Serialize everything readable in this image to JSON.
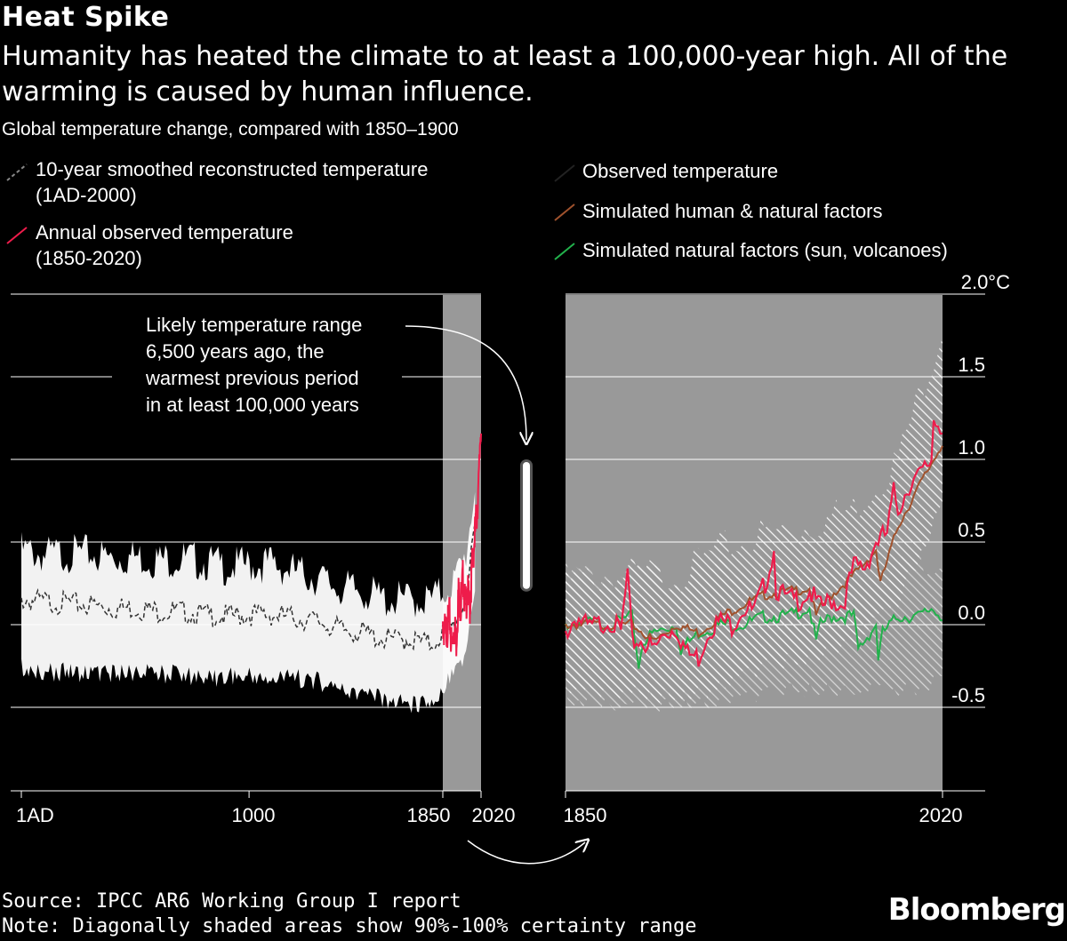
{
  "header": {
    "title": "Heat Spike",
    "subtitle": "Humanity has heated the climate to at least a 100,000-year high. All of the warming is caused by human influence.",
    "axis_title": "Global temperature change, compared with 1850–1900"
  },
  "legend": {
    "reconstructed": "10-year smoothed reconstructed temperature",
    "reconstructed_range": "(1AD-2000)",
    "observed_annual": "Annual observed temperature",
    "observed_annual_range": "(1850-2020)",
    "observed": "Observed temperature",
    "sim_human_natural": "Simulated human & natural factors",
    "sim_natural": "Simulated natural factors (sun, volcanoes)"
  },
  "annotation": {
    "lines": [
      "Likely temperature range",
      "6,500 years ago, the",
      "warmest previous period",
      "in at least 100,000 years"
    ]
  },
  "footer": {
    "source": "Source: IPCC AR6 Working Group I report",
    "note": "Note: Diagonally shaded areas show 90%-100% certainty range",
    "brand": "Bloomberg"
  },
  "colors": {
    "background": "#000000",
    "panel_shade": "#999999",
    "observed_red": "#ee1c4b",
    "human_natural_brown": "#a0522d",
    "natural_green": "#22b24c",
    "band_white": "#ffffff"
  },
  "chart_data": [
    {
      "type": "line",
      "panel": "left",
      "xlabel": "",
      "ylabel": "",
      "x_ticks": [
        "1AD",
        "1000",
        "1850",
        "2020"
      ],
      "xlim": [
        1,
        2020
      ],
      "ylim": [
        -1.0,
        2.0
      ],
      "grid": true,
      "shaded_region": [
        1850,
        2020
      ],
      "series": [
        {
          "name": "10-year smoothed reconstructed temperature (1AD-2000)",
          "style": "dashed",
          "x": [
            1,
            100,
            200,
            300,
            400,
            500,
            600,
            700,
            800,
            900,
            1000,
            1100,
            1200,
            1300,
            1400,
            1500,
            1600,
            1700,
            1800,
            1850,
            1900,
            1950,
            2000
          ],
          "y": [
            0.15,
            0.14,
            0.13,
            0.12,
            0.1,
            0.1,
            0.08,
            0.08,
            0.06,
            0.05,
            0.06,
            0.06,
            0.04,
            0.02,
            -0.03,
            -0.05,
            -0.09,
            -0.09,
            -0.12,
            -0.05,
            0.0,
            0.15,
            0.62
          ],
          "upper": [
            0.45,
            0.42,
            0.43,
            0.43,
            0.4,
            0.41,
            0.39,
            0.4,
            0.38,
            0.35,
            0.36,
            0.37,
            0.32,
            0.28,
            0.22,
            0.2,
            0.15,
            0.15,
            0.15,
            0.2,
            0.26,
            0.4,
            0.9
          ],
          "lower": [
            -0.2,
            -0.22,
            -0.23,
            -0.23,
            -0.24,
            -0.23,
            -0.24,
            -0.24,
            -0.26,
            -0.26,
            -0.25,
            -0.27,
            -0.26,
            -0.28,
            -0.33,
            -0.36,
            -0.4,
            -0.42,
            -0.42,
            -0.32,
            -0.25,
            -0.12,
            0.3
          ]
        },
        {
          "name": "Annual observed temperature (1850-2020)",
          "x": [
            1850,
            1860,
            1870,
            1880,
            1890,
            1900,
            1910,
            1920,
            1930,
            1940,
            1950,
            1960,
            1970,
            1980,
            1990,
            2000,
            2010,
            2015,
            2020
          ],
          "y": [
            0.0,
            -0.05,
            -0.02,
            0.05,
            -0.15,
            0.0,
            -0.1,
            0.2,
            0.1,
            0.3,
            0.1,
            0.2,
            0.1,
            0.35,
            0.5,
            0.65,
            0.85,
            1.1,
            1.23
          ]
        }
      ],
      "annotation_range": [
        0.2,
        1.0
      ]
    },
    {
      "type": "line",
      "panel": "right",
      "xlabel": "",
      "ylabel": "",
      "x_ticks": [
        "1850",
        "2020"
      ],
      "y_ticks": [
        "2.0°C",
        "1.5",
        "1.0",
        "0.5",
        "0.0",
        "-0.5"
      ],
      "xlim": [
        1850,
        2020
      ],
      "ylim": [
        -1.0,
        2.0
      ],
      "grid": true,
      "series": [
        {
          "name": "Observed temperature",
          "x": [
            1850,
            1855,
            1860,
            1865,
            1870,
            1875,
            1878,
            1880,
            1885,
            1890,
            1895,
            1900,
            1905,
            1910,
            1915,
            1920,
            1925,
            1930,
            1935,
            1940,
            1944,
            1945,
            1950,
            1955,
            1960,
            1965,
            1970,
            1975,
            1980,
            1985,
            1990,
            1995,
            1998,
            2000,
            2005,
            2010,
            2015,
            2016,
            2020
          ],
          "y": [
            -0.05,
            0.05,
            -0.02,
            0.0,
            0.03,
            -0.05,
            0.3,
            -0.1,
            -0.1,
            -0.15,
            -0.05,
            -0.02,
            -0.18,
            -0.2,
            -0.02,
            0.02,
            0.0,
            0.1,
            0.08,
            0.25,
            0.45,
            0.22,
            0.15,
            0.15,
            0.2,
            0.1,
            0.15,
            0.12,
            0.35,
            0.35,
            0.5,
            0.55,
            0.8,
            0.7,
            0.85,
            0.9,
            1.0,
            1.25,
            1.2
          ]
        },
        {
          "name": "Simulated human & natural factors",
          "x": [
            1850,
            1860,
            1870,
            1880,
            1890,
            1900,
            1910,
            1920,
            1930,
            1940,
            1950,
            1960,
            1963,
            1965,
            1970,
            1980,
            1990,
            1992,
            2000,
            2010,
            2020
          ],
          "y": [
            0.0,
            0.0,
            0.0,
            0.0,
            -0.1,
            0.0,
            -0.05,
            0.05,
            0.12,
            0.18,
            0.2,
            0.22,
            0.05,
            0.1,
            0.18,
            0.3,
            0.45,
            0.25,
            0.6,
            0.85,
            1.1
          ]
        },
        {
          "name": "Simulated natural factors (sun, volcanoes)",
          "x": [
            1850,
            1860,
            1870,
            1880,
            1883,
            1885,
            1890,
            1900,
            1902,
            1910,
            1920,
            1930,
            1940,
            1950,
            1960,
            1963,
            1965,
            1970,
            1980,
            1982,
            1990,
            1991,
            1993,
            2000,
            2010,
            2015,
            2020
          ],
          "y": [
            0.0,
            0.02,
            0.0,
            0.05,
            -0.25,
            -0.1,
            -0.05,
            0.0,
            -0.15,
            -0.05,
            0.0,
            0.0,
            0.05,
            0.05,
            0.1,
            -0.1,
            0.0,
            0.05,
            0.05,
            -0.15,
            0.0,
            -0.2,
            -0.05,
            0.05,
            0.05,
            0.1,
            0.05
          ]
        }
      ],
      "band": {
        "x": [
          1850,
          1880,
          1900,
          1920,
          1940,
          1960,
          1980,
          2000,
          2010,
          2020
        ],
        "upper": [
          0.25,
          0.3,
          0.3,
          0.45,
          0.55,
          0.6,
          0.7,
          1.0,
          1.4,
          1.8
        ],
        "lower": [
          -0.3,
          -0.35,
          -0.4,
          -0.3,
          -0.2,
          -0.15,
          -0.05,
          0.2,
          0.5,
          0.75
        ]
      },
      "band_natural": {
        "x": [
          1850,
          1900,
          1950,
          2000,
          2020
        ],
        "upper": [
          0.3,
          0.3,
          0.35,
          0.35,
          0.4
        ],
        "lower": [
          -0.4,
          -0.45,
          -0.35,
          -0.35,
          -0.3
        ]
      }
    }
  ]
}
